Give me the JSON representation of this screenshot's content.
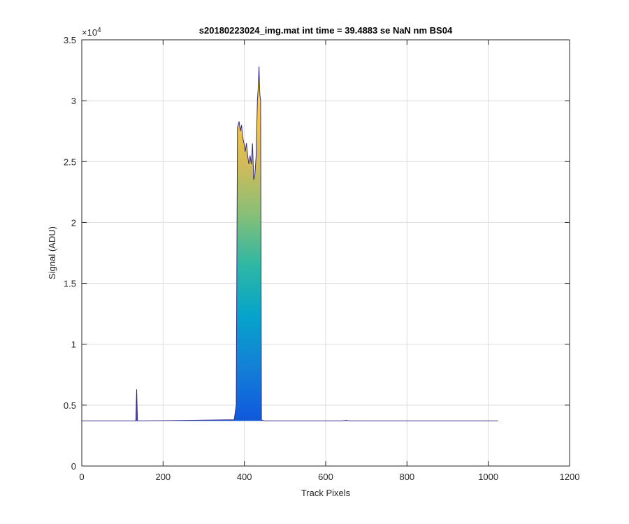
{
  "chart_data": {
    "type": "area",
    "title": "s20180223024_img.mat int time = 39.4883 se  NaN nm BS04",
    "xlabel": "Track Pixels",
    "ylabel": "Signal (ADU)",
    "xlim": [
      0,
      1200
    ],
    "ylim": [
      0,
      35000
    ],
    "y_exponent_label": "×10",
    "y_exponent_power": "4",
    "xticks": [
      0,
      200,
      400,
      600,
      800,
      1000,
      1200
    ],
    "xtick_labels": [
      "0",
      "200",
      "400",
      "600",
      "800",
      "1000",
      "1200"
    ],
    "yticks": [
      0,
      5000,
      10000,
      15000,
      20000,
      25000,
      30000,
      35000
    ],
    "ytick_labels": [
      "0",
      "0.5",
      "1",
      "1.5",
      "2",
      "2.5",
      "3",
      "3.5"
    ],
    "grid": true,
    "colormap": "parula",
    "colormap_stops": [
      "#352a87",
      "#0f5cdd",
      "#1481d6",
      "#06a4ca",
      "#2eb7a4",
      "#87bf77",
      "#d1bb59",
      "#fec832",
      "#f9fb0e"
    ],
    "series": [
      {
        "x": [
          0,
          133,
          135,
          137,
          375,
          380,
          383,
          387,
          390,
          393,
          396,
          399,
          402,
          405,
          408,
          411,
          414,
          417,
          420,
          423,
          426,
          429,
          432,
          434,
          436,
          437,
          438,
          440,
          442,
          445,
          450,
          640,
          650,
          660,
          1024
        ],
        "y": [
          3700,
          3700,
          6300,
          3700,
          3800,
          5000,
          27800,
          28300,
          27500,
          28000,
          27000,
          26500,
          25800,
          26500,
          25500,
          24800,
          25500,
          24800,
          26500,
          23500,
          24000,
          25500,
          30000,
          31000,
          32800,
          31500,
          30500,
          30000,
          3800,
          3750,
          3700,
          3700,
          3760,
          3700,
          3700
        ]
      }
    ]
  }
}
